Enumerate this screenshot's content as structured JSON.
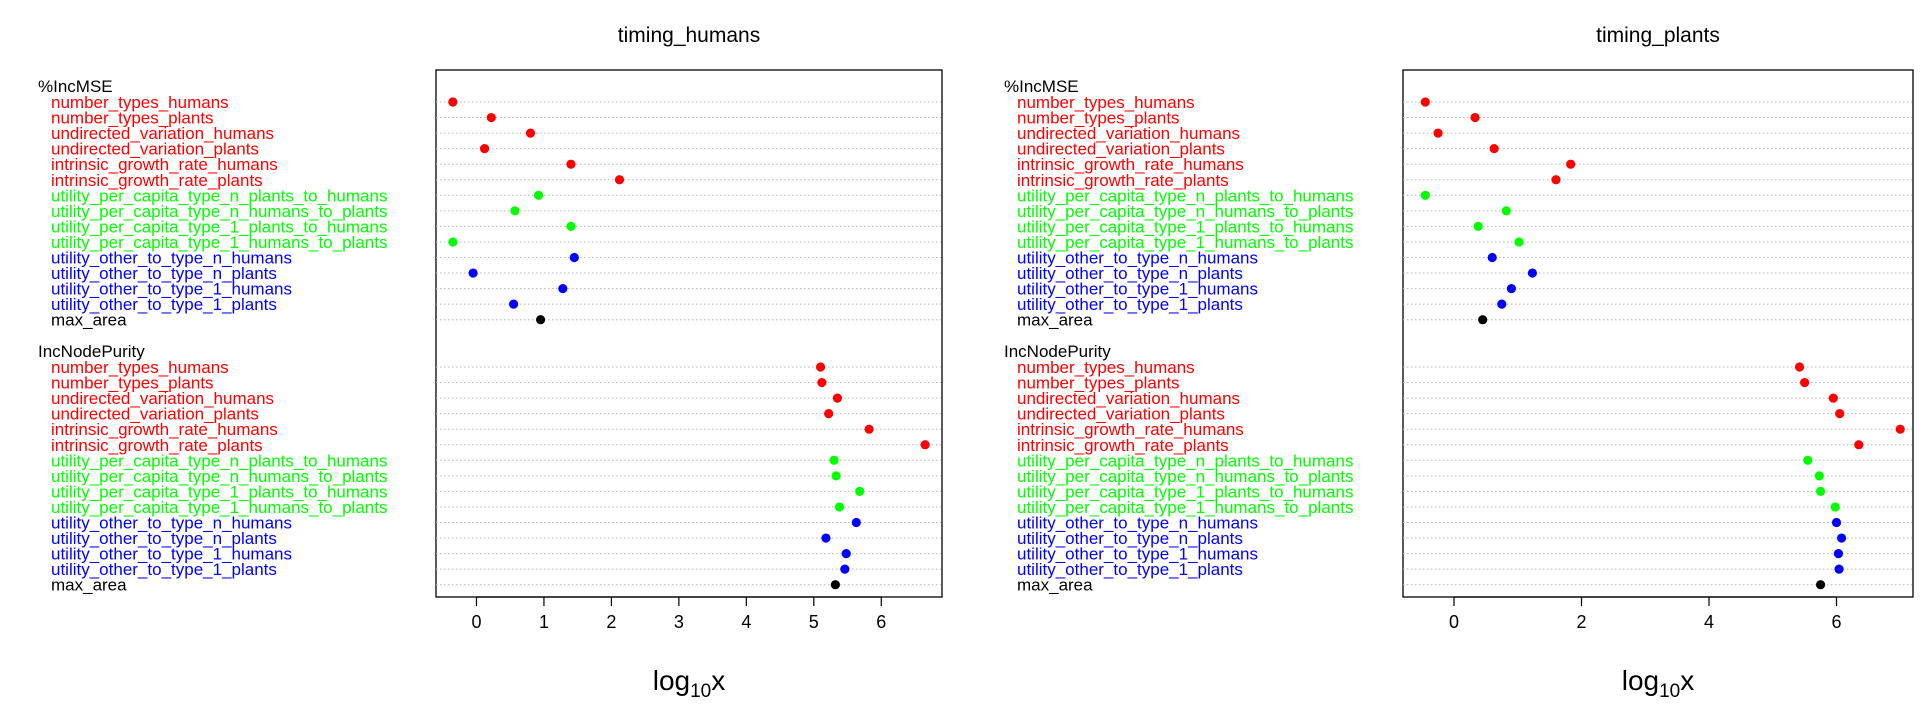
{
  "chart_data": [
    {
      "type": "scatter",
      "title": "timing_humans",
      "xlabel": {
        "base": "log",
        "sub": "10",
        "tail": "x"
      },
      "xlim": [
        -0.6,
        6.9
      ],
      "xticks": [
        0,
        1,
        2,
        3,
        4,
        5,
        6
      ],
      "grid": "dotted horizontal row lines",
      "groups": [
        {
          "name": "%IncMSE",
          "rows": [
            {
              "label": "number_types_humans",
              "value": -0.35,
              "color": "#ff0000"
            },
            {
              "label": "number_types_plants",
              "value": 0.22,
              "color": "#ff0000"
            },
            {
              "label": "undirected_variation_humans",
              "value": 0.8,
              "color": "#ff0000"
            },
            {
              "label": "undirected_variation_plants",
              "value": 0.12,
              "color": "#ff0000"
            },
            {
              "label": "intrinsic_growth_rate_humans",
              "value": 1.4,
              "color": "#ff0000"
            },
            {
              "label": "intrinsic_growth_rate_plants",
              "value": 2.12,
              "color": "#ff0000"
            },
            {
              "label": "utility_per_capita_type_n_plants_to_humans",
              "value": 0.92,
              "color": "#00ff00"
            },
            {
              "label": "utility_per_capita_type_n_humans_to_plants",
              "value": 0.57,
              "color": "#00ff00"
            },
            {
              "label": "utility_per_capita_type_1_plants_to_humans",
              "value": 1.4,
              "color": "#00ff00"
            },
            {
              "label": "utility_per_capita_type_1_humans_to_plants",
              "value": -0.35,
              "color": "#00ff00"
            },
            {
              "label": "utility_other_to_type_n_humans",
              "value": 1.45,
              "color": "#0000ff"
            },
            {
              "label": "utility_other_to_type_n_plants",
              "value": -0.05,
              "color": "#0000ff"
            },
            {
              "label": "utility_other_to_type_1_humans",
              "value": 1.28,
              "color": "#0000ff"
            },
            {
              "label": "utility_other_to_type_1_plants",
              "value": 0.55,
              "color": "#0000ff"
            },
            {
              "label": "max_area",
              "value": 0.95,
              "color": "#000000"
            }
          ]
        },
        {
          "name": "IncNodePurity",
          "rows": [
            {
              "label": "number_types_humans",
              "value": 5.1,
              "color": "#ff0000"
            },
            {
              "label": "number_types_plants",
              "value": 5.12,
              "color": "#ff0000"
            },
            {
              "label": "undirected_variation_humans",
              "value": 5.35,
              "color": "#ff0000"
            },
            {
              "label": "undirected_variation_plants",
              "value": 5.22,
              "color": "#ff0000"
            },
            {
              "label": "intrinsic_growth_rate_humans",
              "value": 5.82,
              "color": "#ff0000"
            },
            {
              "label": "intrinsic_growth_rate_plants",
              "value": 6.65,
              "color": "#ff0000"
            },
            {
              "label": "utility_per_capita_type_n_plants_to_humans",
              "value": 5.3,
              "color": "#00ff00"
            },
            {
              "label": "utility_per_capita_type_n_humans_to_plants",
              "value": 5.33,
              "color": "#00ff00"
            },
            {
              "label": "utility_per_capita_type_1_plants_to_humans",
              "value": 5.68,
              "color": "#00ff00"
            },
            {
              "label": "utility_per_capita_type_1_humans_to_plants",
              "value": 5.38,
              "color": "#00ff00"
            },
            {
              "label": "utility_other_to_type_n_humans",
              "value": 5.63,
              "color": "#0000ff"
            },
            {
              "label": "utility_other_to_type_n_plants",
              "value": 5.18,
              "color": "#0000ff"
            },
            {
              "label": "utility_other_to_type_1_humans",
              "value": 5.48,
              "color": "#0000ff"
            },
            {
              "label": "utility_other_to_type_1_plants",
              "value": 5.46,
              "color": "#0000ff"
            },
            {
              "label": "max_area",
              "value": 5.32,
              "color": "#000000"
            }
          ]
        }
      ]
    },
    {
      "type": "scatter",
      "title": "timing_plants",
      "xlabel": {
        "base": "log",
        "sub": "10",
        "tail": "x"
      },
      "xlim": [
        -0.8,
        7.2
      ],
      "xticks": [
        0,
        2,
        4,
        6
      ],
      "grid": "dotted horizontal row lines",
      "groups": [
        {
          "name": "%IncMSE",
          "rows": [
            {
              "label": "number_types_humans",
              "value": -0.45,
              "color": "#ff0000"
            },
            {
              "label": "number_types_plants",
              "value": 0.33,
              "color": "#ff0000"
            },
            {
              "label": "undirected_variation_humans",
              "value": -0.25,
              "color": "#ff0000"
            },
            {
              "label": "undirected_variation_plants",
              "value": 0.63,
              "color": "#ff0000"
            },
            {
              "label": "intrinsic_growth_rate_humans",
              "value": 1.83,
              "color": "#ff0000"
            },
            {
              "label": "intrinsic_growth_rate_plants",
              "value": 1.6,
              "color": "#ff0000"
            },
            {
              "label": "utility_per_capita_type_n_plants_to_humans",
              "value": -0.45,
              "color": "#00ff00"
            },
            {
              "label": "utility_per_capita_type_n_humans_to_plants",
              "value": 0.82,
              "color": "#00ff00"
            },
            {
              "label": "utility_per_capita_type_1_plants_to_humans",
              "value": 0.38,
              "color": "#00ff00"
            },
            {
              "label": "utility_per_capita_type_1_humans_to_plants",
              "value": 1.02,
              "color": "#00ff00"
            },
            {
              "label": "utility_other_to_type_n_humans",
              "value": 0.6,
              "color": "#0000ff"
            },
            {
              "label": "utility_other_to_type_n_plants",
              "value": 1.23,
              "color": "#0000ff"
            },
            {
              "label": "utility_other_to_type_1_humans",
              "value": 0.9,
              "color": "#0000ff"
            },
            {
              "label": "utility_other_to_type_1_plants",
              "value": 0.75,
              "color": "#0000ff"
            },
            {
              "label": "max_area",
              "value": 0.45,
              "color": "#000000"
            }
          ]
        },
        {
          "name": "IncNodePurity",
          "rows": [
            {
              "label": "number_types_humans",
              "value": 5.42,
              "color": "#ff0000"
            },
            {
              "label": "number_types_plants",
              "value": 5.5,
              "color": "#ff0000"
            },
            {
              "label": "undirected_variation_humans",
              "value": 5.95,
              "color": "#ff0000"
            },
            {
              "label": "undirected_variation_plants",
              "value": 6.05,
              "color": "#ff0000"
            },
            {
              "label": "intrinsic_growth_rate_humans",
              "value": 7.0,
              "color": "#ff0000"
            },
            {
              "label": "intrinsic_growth_rate_plants",
              "value": 6.35,
              "color": "#ff0000"
            },
            {
              "label": "utility_per_capita_type_n_plants_to_humans",
              "value": 5.55,
              "color": "#00ff00"
            },
            {
              "label": "utility_per_capita_type_n_humans_to_plants",
              "value": 5.73,
              "color": "#00ff00"
            },
            {
              "label": "utility_per_capita_type_1_plants_to_humans",
              "value": 5.75,
              "color": "#00ff00"
            },
            {
              "label": "utility_per_capita_type_1_humans_to_plants",
              "value": 5.98,
              "color": "#00ff00"
            },
            {
              "label": "utility_other_to_type_n_humans",
              "value": 6.0,
              "color": "#0000ff"
            },
            {
              "label": "utility_other_to_type_n_plants",
              "value": 6.08,
              "color": "#0000ff"
            },
            {
              "label": "utility_other_to_type_1_humans",
              "value": 6.03,
              "color": "#0000ff"
            },
            {
              "label": "utility_other_to_type_1_plants",
              "value": 6.04,
              "color": "#0000ff"
            },
            {
              "label": "max_area",
              "value": 5.75,
              "color": "#000000"
            }
          ]
        }
      ]
    }
  ]
}
